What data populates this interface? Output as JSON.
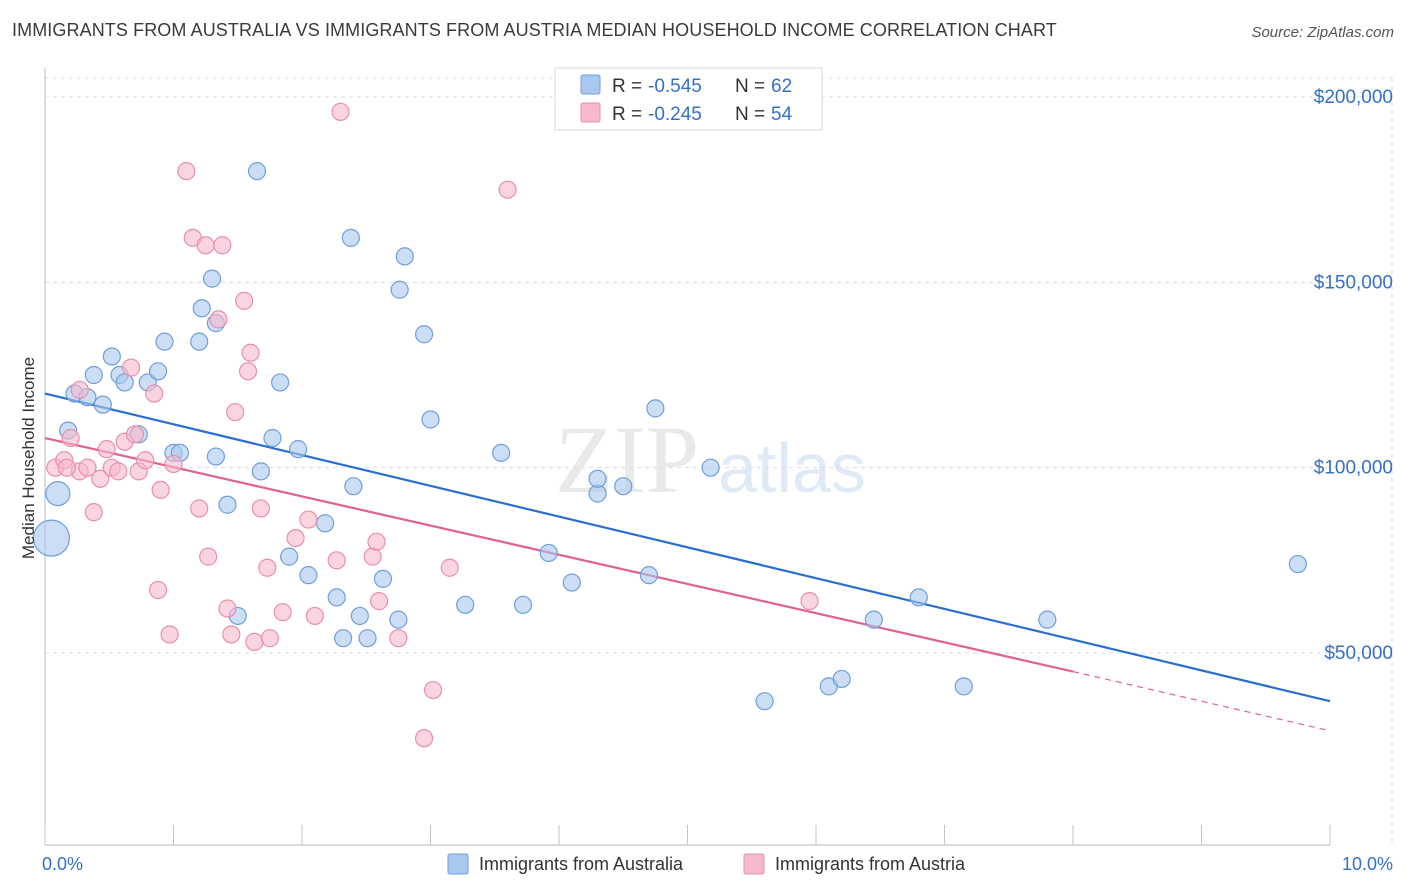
{
  "title": "IMMIGRANTS FROM AUSTRALIA VS IMMIGRANTS FROM AUSTRIA MEDIAN HOUSEHOLD INCOME CORRELATION CHART",
  "source": "Source: ZipAtlas.com",
  "watermark": {
    "zip": "ZIP",
    "atlas": "atlas"
  },
  "colors": {
    "australia_fill": "#a8c8f0",
    "australia_stroke": "#6f9fdc",
    "australia_line": "#2a6fd0",
    "austria_fill": "#f6b9cc",
    "austria_stroke": "#e88fac",
    "austria_line": "#e0628e",
    "axis_value_text": "#3470c8",
    "grid": "#dddddd"
  },
  "legend": {
    "rows": [
      {
        "r_label": "R =",
        "r_value": "-0.545",
        "n_label": "N =",
        "n_value": "62"
      },
      {
        "r_label": "R =",
        "r_value": "-0.245",
        "n_label": "N =",
        "n_value": "54"
      }
    ]
  },
  "chart_data": {
    "type": "scatter",
    "title": "IMMIGRANTS FROM AUSTRALIA VS IMMIGRANTS FROM AUSTRIA MEDIAN HOUSEHOLD INCOME CORRELATION CHART",
    "xlabel": "",
    "ylabel": "Median Household Income",
    "xlim": [
      0,
      10
    ],
    "ylim": [
      0,
      210000
    ],
    "x_ticks": [
      0,
      1,
      2,
      3,
      4,
      5,
      6,
      7,
      8,
      9,
      10
    ],
    "x_tick_labels": {
      "0": "0.0%",
      "10": "10.0%"
    },
    "y_ticks": [
      50000,
      100000,
      150000,
      200000
    ],
    "y_tick_labels": [
      "$50,000",
      "$100,000",
      "$150,000",
      "$200,000"
    ],
    "grid": true,
    "legend_position": "top-center",
    "series": [
      {
        "name": "Immigrants from Australia",
        "color": "#a8c8f0",
        "points": [
          [
            0.1,
            93000,
            "large"
          ],
          [
            0.05,
            81000,
            "xlarge"
          ],
          [
            0.18,
            110000
          ],
          [
            0.23,
            120000
          ],
          [
            0.33,
            119000
          ],
          [
            0.38,
            125000
          ],
          [
            0.45,
            117000
          ],
          [
            0.52,
            130000
          ],
          [
            0.58,
            125000
          ],
          [
            0.62,
            123000
          ],
          [
            0.73,
            109000
          ],
          [
            0.8,
            123000
          ],
          [
            0.88,
            126000
          ],
          [
            0.93,
            134000
          ],
          [
            1.0,
            104000
          ],
          [
            1.05,
            104000
          ],
          [
            1.2,
            134000
          ],
          [
            1.22,
            143000
          ],
          [
            1.3,
            151000
          ],
          [
            1.33,
            139000
          ],
          [
            1.33,
            103000
          ],
          [
            1.42,
            90000
          ],
          [
            1.5,
            60000
          ],
          [
            1.65,
            180000
          ],
          [
            1.68,
            99000
          ],
          [
            1.77,
            108000
          ],
          [
            1.83,
            123000
          ],
          [
            1.9,
            76000
          ],
          [
            1.97,
            105000
          ],
          [
            2.05,
            71000
          ],
          [
            2.18,
            85000
          ],
          [
            2.27,
            65000
          ],
          [
            2.32,
            54000
          ],
          [
            2.38,
            162000
          ],
          [
            2.4,
            95000
          ],
          [
            2.45,
            60000
          ],
          [
            2.51,
            54000
          ],
          [
            2.63,
            70000
          ],
          [
            2.75,
            59000
          ],
          [
            2.76,
            148000
          ],
          [
            2.8,
            157000
          ],
          [
            2.95,
            136000
          ],
          [
            3.0,
            113000
          ],
          [
            3.27,
            63000
          ],
          [
            3.55,
            104000
          ],
          [
            3.72,
            63000
          ],
          [
            3.92,
            77000
          ],
          [
            4.1,
            69000
          ],
          [
            4.3,
            93000
          ],
          [
            4.3,
            97000
          ],
          [
            4.5,
            95000
          ],
          [
            4.7,
            71000
          ],
          [
            4.75,
            116000
          ],
          [
            5.18,
            100000
          ],
          [
            5.6,
            37000
          ],
          [
            6.1,
            41000
          ],
          [
            6.2,
            43000
          ],
          [
            6.45,
            59000
          ],
          [
            6.8,
            65000
          ],
          [
            7.15,
            41000
          ],
          [
            7.8,
            59000
          ],
          [
            9.75,
            74000
          ]
        ]
      },
      {
        "name": "Immigrants from Austria",
        "color": "#f6b9cc",
        "points": [
          [
            0.08,
            100000
          ],
          [
            0.15,
            102000
          ],
          [
            0.2,
            108000
          ],
          [
            0.27,
            99000
          ],
          [
            0.27,
            121000
          ],
          [
            0.33,
            100000
          ],
          [
            0.38,
            88000
          ],
          [
            0.43,
            97000
          ],
          [
            0.48,
            105000
          ],
          [
            0.52,
            100000
          ],
          [
            0.57,
            99000
          ],
          [
            0.62,
            107000
          ],
          [
            0.67,
            127000
          ],
          [
            0.7,
            109000
          ],
          [
            0.73,
            99000
          ],
          [
            0.78,
            102000
          ],
          [
            0.85,
            120000
          ],
          [
            0.88,
            67000
          ],
          [
            0.9,
            94000
          ],
          [
            0.97,
            55000
          ],
          [
            1.0,
            101000
          ],
          [
            1.1,
            180000
          ],
          [
            1.15,
            162000
          ],
          [
            1.2,
            89000
          ],
          [
            1.25,
            160000
          ],
          [
            1.27,
            76000
          ],
          [
            1.35,
            140000
          ],
          [
            1.38,
            160000
          ],
          [
            1.42,
            62000
          ],
          [
            1.45,
            55000
          ],
          [
            1.48,
            115000
          ],
          [
            1.55,
            145000
          ],
          [
            1.58,
            126000
          ],
          [
            1.6,
            131000
          ],
          [
            1.63,
            53000
          ],
          [
            1.68,
            89000
          ],
          [
            1.73,
            73000
          ],
          [
            1.75,
            54000
          ],
          [
            1.85,
            61000
          ],
          [
            1.95,
            81000
          ],
          [
            2.05,
            86000
          ],
          [
            2.1,
            60000
          ],
          [
            2.27,
            75000
          ],
          [
            2.3,
            196000
          ],
          [
            2.55,
            76000
          ],
          [
            2.58,
            80000
          ],
          [
            2.6,
            64000
          ],
          [
            2.75,
            54000
          ],
          [
            2.95,
            27000
          ],
          [
            3.02,
            40000
          ],
          [
            3.15,
            73000
          ],
          [
            3.6,
            175000
          ],
          [
            5.95,
            64000
          ],
          [
            0.17,
            100000
          ]
        ]
      }
    ],
    "trend_lines": [
      {
        "series": "Immigrants from Australia",
        "x": [
          0.0,
          10.0
        ],
        "y": [
          120000,
          37000
        ],
        "style": "solid"
      },
      {
        "series": "Immigrants from Austria",
        "x": [
          0.0,
          8.0
        ],
        "y": [
          108000,
          45000
        ],
        "style": "solid"
      },
      {
        "series": "Immigrants from Austria",
        "x": [
          8.0,
          10.0
        ],
        "y": [
          45000,
          29000
        ],
        "style": "dashed"
      }
    ]
  },
  "bottom_legend": [
    {
      "label": "Immigrants from Australia"
    },
    {
      "label": "Immigrants from Austria"
    }
  ]
}
